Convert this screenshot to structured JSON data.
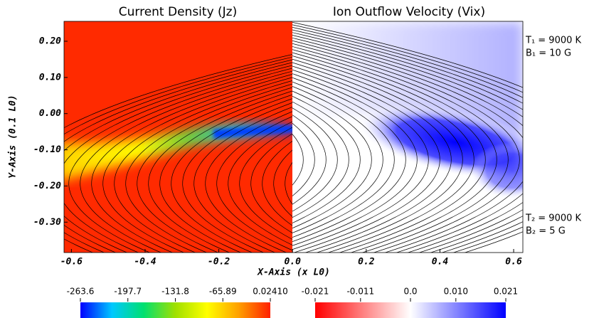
{
  "chart_data": {
    "type": "heatmap",
    "panel_titles": [
      "Current Density (Jz)",
      "Ion Outflow Velocity (Vix)"
    ],
    "x_label": "X-Axis (x L0)",
    "y_label": "Y-Axis (0.1 L0)",
    "xlim": [
      -0.62,
      0.625
    ],
    "ylim": [
      -0.384,
      0.255
    ],
    "xticks": [
      -0.6,
      -0.4,
      -0.2,
      {
        "value": 0,
        "label": "0.0"
      },
      0.2,
      0.4,
      0.6
    ],
    "yticks": [
      {
        "value": 0.2,
        "label": "0.20"
      },
      {
        "value": 0.1,
        "label": "0.10"
      },
      {
        "value": 0,
        "label": "0.00"
      },
      {
        "value": -0.1,
        "label": "-0.10"
      },
      {
        "value": -0.2,
        "label": "-0.20"
      },
      {
        "value": -0.3,
        "label": "-0.30"
      }
    ],
    "annotations": [
      "T₁ = 9000 K",
      "B₁ = 10 G",
      "T₂ = 9000 K",
      "B₂ = 5 G"
    ],
    "colorbars": [
      {
        "lim": [
          -263.6,
          0.0241
        ],
        "colors": [
          "#0000ff",
          "#00c8ff",
          "#00e070",
          "#a0e000",
          "#ffff00",
          "#ffa000",
          "#ff2000"
        ],
        "ticks": [
          -263.6,
          -197.7,
          -131.8,
          -65.89,
          {
            "value": 0.0241,
            "label": "0.02410"
          }
        ]
      },
      {
        "lim": [
          -0.021,
          0.021
        ],
        "colors": [
          "#ff0000",
          "#ff8080",
          "#ffffff",
          "#8080ff",
          "#0000ff"
        ],
        "ticks": [
          -0.021,
          -0.011,
          {
            "value": 0,
            "label": "0.0"
          },
          {
            "value": 0.01,
            "label": "0.010"
          },
          0.021
        ]
      }
    ]
  }
}
